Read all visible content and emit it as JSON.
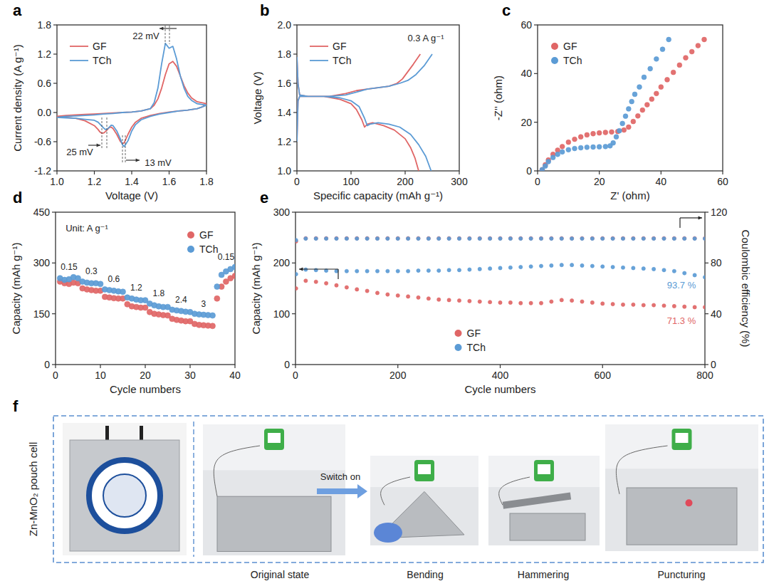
{
  "chart_data": [
    {
      "panel": "a",
      "type": "line",
      "x_label": "Voltage (V)",
      "y_label": "Current density (A g⁻¹)",
      "xlim": [
        1.0,
        1.8
      ],
      "xticks": [
        {
          "value": 1,
          "label": "1.0"
        },
        1.2,
        1.4,
        1.6,
        1.8
      ],
      "ylim": [
        -1.2,
        1.8
      ],
      "yticks": [
        -1.2,
        -0.6,
        {
          "value": 0,
          "label": "0.0"
        },
        0.6,
        1.2,
        1.8
      ],
      "grid": false,
      "legend": "upper left",
      "annotations": [
        "22 mV",
        "25 mV",
        "13 mV"
      ],
      "series": [
        {
          "name": "GF",
          "color": "#e06666",
          "line_style": "solid",
          "x": [
            1.0,
            1.05,
            1.1,
            1.15,
            1.2,
            1.25,
            1.3,
            1.35,
            1.4,
            1.45,
            1.5,
            1.52,
            1.54,
            1.56,
            1.58,
            1.6,
            1.62,
            1.64,
            1.66,
            1.68,
            1.7,
            1.72,
            1.75,
            1.8,
            1.78,
            1.75,
            1.7,
            1.65,
            1.6,
            1.55,
            1.5,
            1.45,
            1.42,
            1.4,
            1.38,
            1.36,
            1.35,
            1.34,
            1.32,
            1.3,
            1.29,
            1.28,
            1.27,
            1.26,
            1.25,
            1.24,
            1.23,
            1.22,
            1.2,
            1.15,
            1.1,
            1.05,
            1.0
          ],
          "values": [
            -0.08,
            -0.06,
            -0.05,
            -0.04,
            -0.03,
            -0.02,
            -0.01,
            0,
            0.01,
            0.03,
            0.08,
            0.15,
            0.28,
            0.5,
            0.78,
            1.0,
            1.05,
            0.95,
            0.75,
            0.55,
            0.4,
            0.3,
            0.22,
            0.18,
            0.12,
            0.08,
            0.05,
            0.03,
            0.01,
            -0.02,
            -0.06,
            -0.12,
            -0.2,
            -0.3,
            -0.45,
            -0.62,
            -0.64,
            -0.6,
            -0.45,
            -0.33,
            -0.3,
            -0.31,
            -0.35,
            -0.39,
            -0.42,
            -0.43,
            -0.4,
            -0.35,
            -0.27,
            -0.17,
            -0.12,
            -0.1,
            -0.08
          ]
        },
        {
          "name": "TCh",
          "color": "#5b9bd5",
          "line_style": "solid",
          "x": [
            1.0,
            1.05,
            1.1,
            1.15,
            1.2,
            1.25,
            1.3,
            1.35,
            1.4,
            1.45,
            1.5,
            1.52,
            1.54,
            1.56,
            1.58,
            1.6,
            1.62,
            1.64,
            1.66,
            1.68,
            1.7,
            1.72,
            1.75,
            1.8,
            1.78,
            1.75,
            1.7,
            1.65,
            1.6,
            1.55,
            1.5,
            1.45,
            1.42,
            1.4,
            1.38,
            1.36,
            1.35,
            1.34,
            1.32,
            1.3,
            1.29,
            1.28,
            1.27,
            1.26,
            1.25,
            1.24,
            1.23,
            1.22,
            1.2,
            1.15,
            1.1,
            1.05,
            1.0
          ],
          "values": [
            -0.1,
            -0.08,
            -0.07,
            -0.06,
            -0.05,
            -0.03,
            -0.02,
            0,
            0.01,
            0.03,
            0.08,
            0.2,
            0.5,
            1.0,
            1.42,
            1.32,
            1.36,
            1.1,
            0.75,
            0.5,
            0.33,
            0.25,
            0.18,
            0.15,
            0.12,
            0.08,
            0.05,
            0.03,
            0.0,
            -0.03,
            -0.08,
            -0.15,
            -0.25,
            -0.38,
            -0.58,
            -0.7,
            -0.66,
            -0.55,
            -0.38,
            -0.27,
            -0.26,
            -0.3,
            -0.34,
            -0.35,
            -0.32,
            -0.28,
            -0.24,
            -0.2,
            -0.16,
            -0.14,
            -0.12,
            -0.11,
            -0.1
          ]
        }
      ]
    },
    {
      "panel": "b",
      "type": "line",
      "x_label": "Specific capacity (mAh g⁻¹)",
      "y_label": "Voltage (V)",
      "xlim": [
        0,
        300
      ],
      "xticks": [
        0,
        100,
        200,
        300
      ],
      "ylim": [
        1.0,
        2.0
      ],
      "yticks": [
        {
          "value": 1,
          "label": "1.0"
        },
        1.2,
        1.4,
        1.6,
        1.8,
        {
          "value": 2,
          "label": "2.0"
        }
      ],
      "grid": false,
      "legend": "upper left",
      "annotations": [
        "0.3 A g⁻¹"
      ],
      "series": [
        {
          "name": "GF",
          "color": "#e06666",
          "line_style": "solid",
          "x": [
            0,
            2,
            5,
            20,
            50,
            80,
            100,
            110,
            120,
            125,
            130,
            140,
            160,
            180,
            200,
            210,
            218,
            225,
            null,
            0,
            2,
            5,
            30,
            60,
            90,
            110,
            130,
            150,
            170,
            185,
            195,
            205,
            215,
            228
          ],
          "values": [
            1.78,
            1.6,
            1.52,
            1.51,
            1.51,
            1.49,
            1.46,
            1.42,
            1.35,
            1.3,
            1.32,
            1.33,
            1.31,
            1.28,
            1.22,
            1.16,
            1.09,
            1.0,
            null,
            1.2,
            1.48,
            1.51,
            1.51,
            1.51,
            1.53,
            1.55,
            1.56,
            1.57,
            1.58,
            1.6,
            1.63,
            1.68,
            1.73,
            1.8
          ]
        },
        {
          "name": "TCh",
          "color": "#5b9bd5",
          "line_style": "solid",
          "x": [
            0,
            2,
            5,
            20,
            50,
            80,
            100,
            115,
            125,
            130,
            135,
            150,
            170,
            190,
            210,
            225,
            238,
            248,
            null,
            0,
            2,
            5,
            30,
            60,
            90,
            110,
            130,
            150,
            170,
            190,
            205,
            220,
            235,
            250
          ],
          "values": [
            1.78,
            1.6,
            1.52,
            1.51,
            1.51,
            1.5,
            1.48,
            1.44,
            1.36,
            1.31,
            1.32,
            1.33,
            1.32,
            1.3,
            1.25,
            1.18,
            1.1,
            1.0,
            null,
            1.2,
            1.48,
            1.51,
            1.51,
            1.51,
            1.52,
            1.54,
            1.56,
            1.57,
            1.58,
            1.6,
            1.62,
            1.66,
            1.72,
            1.8
          ]
        }
      ]
    },
    {
      "panel": "c",
      "type": "scatter",
      "x_label": "Z' (ohm)",
      "y_label": "-Z'' (ohm)",
      "xlim": [
        0,
        60
      ],
      "xticks": [
        0,
        20,
        40,
        60
      ],
      "ylim": [
        0,
        60
      ],
      "yticks": [
        0,
        20,
        40,
        60
      ],
      "grid": false,
      "legend": "upper left",
      "series": [
        {
          "name": "GF",
          "color": "#e06666",
          "marker": "circle",
          "x": [
            1.5,
            2.5,
            3.5,
            5,
            6.5,
            8,
            10,
            12,
            14,
            16,
            18,
            20,
            22,
            24,
            26,
            28,
            29.5,
            31,
            32.5,
            34,
            35.5,
            37,
            38.5,
            40,
            42,
            44,
            46,
            48,
            50,
            52,
            54
          ],
          "values": [
            0.5,
            2.5,
            4.5,
            6.8,
            8.5,
            10,
            11.8,
            13,
            14,
            14.8,
            15.3,
            15.6,
            15.8,
            16,
            16.2,
            16.8,
            18,
            20.3,
            22.6,
            25,
            27.2,
            29.5,
            31.8,
            34.5,
            37.5,
            40.5,
            43.5,
            46.5,
            49,
            51.5,
            54
          ]
        },
        {
          "name": "TCh",
          "color": "#5b9bd5",
          "marker": "circle",
          "x": [
            1.5,
            2.5,
            3.5,
            5,
            6.5,
            8,
            10,
            12,
            14,
            16,
            18,
            20,
            22,
            23.5,
            24.5,
            25.5,
            26.5,
            27.5,
            28.5,
            29.5,
            30.5,
            31.5,
            33,
            34.5,
            36.5,
            38.5,
            40.5,
            42.5
          ],
          "values": [
            0.5,
            2,
            3.8,
            5.5,
            6.8,
            7.8,
            8.7,
            9.2,
            9.5,
            9.7,
            9.8,
            9.9,
            10,
            10.3,
            11.5,
            14,
            16.5,
            19.5,
            22.5,
            25.5,
            28.5,
            31.5,
            34.5,
            38.5,
            42,
            46,
            50,
            54
          ]
        }
      ]
    },
    {
      "panel": "d",
      "type": "scatter",
      "x_label": "Cycle numbers",
      "y_label": "Capacity (mAh g⁻¹)",
      "xlim": [
        0,
        40
      ],
      "xticks": [
        0,
        10,
        20,
        30,
        40
      ],
      "ylim": [
        0,
        450
      ],
      "yticks": [
        0,
        150,
        300,
        450
      ],
      "grid": false,
      "legend": "upper right",
      "annotations": [
        "Unit: A g⁻¹"
      ],
      "rates": [
        0.15,
        0.3,
        0.6,
        1.2,
        1.8,
        2.4,
        3,
        0.15
      ],
      "x": [
        1,
        2,
        3,
        4,
        5,
        6,
        7,
        8,
        9,
        10,
        11,
        12,
        13,
        14,
        15,
        16,
        17,
        18,
        19,
        20,
        21,
        22,
        23,
        24,
        25,
        26,
        27,
        28,
        29,
        30,
        31,
        32,
        33,
        34,
        35,
        36,
        37,
        38,
        39,
        40
      ],
      "series": [
        {
          "name": "GF",
          "color": "#e06666",
          "marker": "circle",
          "values": [
            245,
            240,
            238,
            242,
            240,
            225,
            222,
            220,
            218,
            218,
            200,
            198,
            196,
            195,
            195,
            178,
            172,
            170,
            168,
            168,
            155,
            150,
            148,
            146,
            145,
            135,
            132,
            130,
            128,
            128,
            120,
            117,
            116,
            115,
            114,
            195,
            230,
            245,
            255,
            262
          ]
        },
        {
          "name": "TCh",
          "color": "#5b9bd5",
          "marker": "circle",
          "values": [
            255,
            250,
            252,
            258,
            255,
            245,
            242,
            240,
            240,
            238,
            222,
            220,
            218,
            216,
            215,
            198,
            195,
            192,
            190,
            190,
            180,
            175,
            172,
            170,
            170,
            162,
            160,
            158,
            156,
            155,
            150,
            148,
            147,
            146,
            145,
            230,
            265,
            275,
            282,
            288
          ]
        }
      ]
    },
    {
      "panel": "e",
      "type": "scatter",
      "x_label": "Cycle numbers",
      "y_label": "Capacity (mAh g⁻¹)",
      "y2_label": "Coulombic efficiency (%)",
      "xlim": [
        0,
        800
      ],
      "xticks": [
        0,
        200,
        400,
        600,
        800
      ],
      "ylim": [
        0,
        300
      ],
      "yticks": [
        0,
        100,
        200,
        300
      ],
      "y2lim": [
        0,
        120
      ],
      "y2ticks": [
        0,
        40,
        80,
        120
      ],
      "grid": false,
      "legend": "lower center",
      "annotations": [
        "93.7 %",
        "71.3 %"
      ],
      "x": [
        1,
        20,
        40,
        60,
        80,
        100,
        120,
        140,
        160,
        180,
        200,
        220,
        240,
        260,
        280,
        300,
        320,
        340,
        360,
        380,
        400,
        420,
        440,
        460,
        480,
        500,
        520,
        540,
        560,
        580,
        600,
        620,
        640,
        660,
        680,
        700,
        720,
        740,
        760,
        780,
        800
      ],
      "series": [
        {
          "name": "GF",
          "color": "#e06666",
          "marker": "circle",
          "values": [
            150,
            165,
            163,
            160,
            156,
            152,
            148,
            145,
            141,
            138,
            136,
            134,
            132,
            130,
            128,
            127,
            126,
            125,
            124,
            123,
            122,
            122,
            121,
            121,
            121,
            124,
            127,
            126,
            124,
            122,
            120,
            119,
            118,
            118,
            117,
            117,
            116,
            115,
            114,
            113,
            113
          ]
        },
        {
          "name": "TCh",
          "color": "#5b9bd5",
          "marker": "circle",
          "values": [
            178,
            187,
            186,
            185,
            184,
            184,
            184,
            184,
            184,
            184,
            184,
            184,
            185,
            185,
            185,
            186,
            186,
            187,
            188,
            189,
            190,
            191,
            192,
            193,
            194,
            195,
            196,
            196,
            195,
            194,
            193,
            192,
            191,
            190,
            189,
            188,
            186,
            184,
            180,
            176,
            172
          ]
        },
        {
          "name": "GF",
          "color": "#e06666",
          "marker": "circle",
          "axis": "y2",
          "values": [
            97,
            99.4,
            99.4,
            99.4,
            99.4,
            99.4,
            99.4,
            99.4,
            99.4,
            99.4,
            99.4,
            99.4,
            99.4,
            99.4,
            99.4,
            99.4,
            99.4,
            99.4,
            99.4,
            99.4,
            99.4,
            99.4,
            99.4,
            99.4,
            99.4,
            99.4,
            99.4,
            99.4,
            99.4,
            99.4,
            99.4,
            99.4,
            99.4,
            99.4,
            99.4,
            99.4,
            99.4,
            99.4,
            99.4,
            99.4,
            99.4
          ]
        },
        {
          "name": "TCh",
          "color": "#5b9bd5",
          "marker": "circle",
          "axis": "y2",
          "values": [
            98,
            99.2,
            99.2,
            99.2,
            99.2,
            99.2,
            99.2,
            99.2,
            99.2,
            99.2,
            99.2,
            99.2,
            99.2,
            99.2,
            99.2,
            99.2,
            99.2,
            99.2,
            99.2,
            99.2,
            99.2,
            99.2,
            99.2,
            99.2,
            99.2,
            99.2,
            99.2,
            99.2,
            99.2,
            99.2,
            99.2,
            99.2,
            99.2,
            99.2,
            99.2,
            99.2,
            99.2,
            99.2,
            99.2,
            99.2,
            99.2
          ]
        }
      ]
    }
  ],
  "photo_panel": {
    "panel": "f",
    "title": "Zn-MnO₂ pouch cell",
    "arrow_label": "Switch on",
    "captions": [
      "Original state",
      "Bending",
      "Hammering",
      "Puncturing"
    ]
  }
}
